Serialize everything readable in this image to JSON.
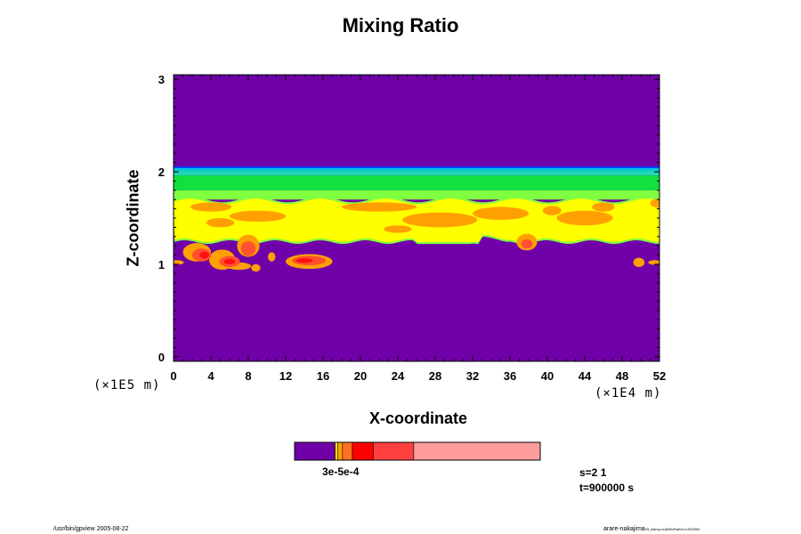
{
  "chart_data": {
    "type": "heatmap",
    "title": "Mixing Ratio",
    "xlabel": "X-coordinate",
    "ylabel": "Z-coordinate",
    "x_scale_note": "(×1E4 m)",
    "y_scale_note": "(×1E5 m)",
    "xlim": [
      0,
      52
    ],
    "ylim": [
      -0.05,
      3.05
    ],
    "x_ticks": [
      0,
      4,
      8,
      12,
      16,
      20,
      24,
      28,
      32,
      36,
      40,
      44,
      48,
      52
    ],
    "y_ticks": [
      0,
      1,
      2,
      3
    ],
    "colors": {
      "background": "#7000a8",
      "blue": "#0040ff",
      "cyan": "#00c8e0",
      "green": "#10e040",
      "lightgreen": "#80ff40",
      "yellow": "#ffff00",
      "orange": "#ffa000",
      "red": "#ff5030",
      "darkred": "#ff1010"
    },
    "layers": [
      {
        "name": "green-layer",
        "z_range": [
          1.25,
          2.04
        ],
        "color": "#10e040"
      },
      {
        "name": "yellow-layer",
        "z_range": [
          1.24,
          1.7
        ],
        "color": "#ffff00"
      }
    ],
    "colorbar": {
      "colors": [
        "#7000a8",
        "#ffff00",
        "#ffa000",
        "#ff7020",
        "#ff0000",
        "#ff4040",
        "#ff9c9c"
      ],
      "fractions": [
        0.165,
        0.01,
        0.02,
        0.04,
        0.085,
        0.165,
        0.515
      ],
      "labels": "3e-5e-4"
    },
    "info": [
      "s=2 1",
      "t=900000 s"
    ],
    "footer_left": "/usr/bin/gpview 2005-08-22",
    "footer_right": "arare-nakajima",
    "footer_right_sub": "03_Bamy.nc@MixRatio3,t=900000"
  }
}
